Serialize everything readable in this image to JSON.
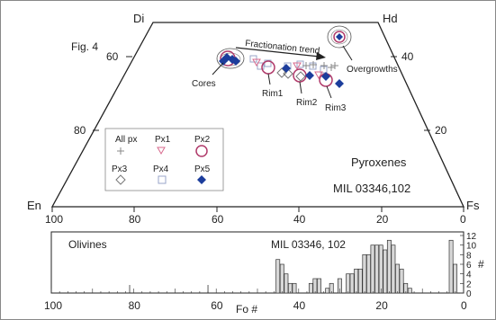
{
  "chart_data": [
    {
      "type": "scatter",
      "diagram": "pyroxene quadrilateral",
      "figure_label": "Fig. 4",
      "corners": [
        "Di",
        "Hd",
        "En",
        "Fs"
      ],
      "title": "Pyroxenes",
      "sample": "MIL 03346,102",
      "bottom_ticks": [
        100,
        80,
        60,
        40,
        20,
        0
      ],
      "left_ticks": [
        60,
        80
      ],
      "right_ticks": [
        40,
        20
      ],
      "trend_label": "Fractionation trend",
      "annotations": [
        "Cores",
        "Rim1",
        "Rim2",
        "Rim3",
        "Overgrowths"
      ],
      "legend": [
        {
          "label": "All px",
          "marker": "plus",
          "color": "#888888"
        },
        {
          "label": "Px1",
          "marker": "triangle-down",
          "color": "#d86a8e"
        },
        {
          "label": "Px2",
          "marker": "circle",
          "color": "#b03a6a"
        },
        {
          "label": "Px3",
          "marker": "diamond",
          "color": "#777777"
        },
        {
          "label": "Px4",
          "marker": "square",
          "color": "#9aa6c8"
        },
        {
          "label": "Px5",
          "marker": "filled-diamond",
          "color": "#1c3d9c"
        }
      ],
      "points": {
        "cores_px5": [
          [
            57,
            38
          ],
          [
            56,
            37
          ],
          [
            55,
            38
          ],
          [
            54,
            37
          ]
        ],
        "cores_px2": [
          [
            56,
            38
          ]
        ],
        "px4": [
          [
            49,
            38
          ],
          [
            47,
            35
          ],
          [
            45,
            36
          ],
          [
            41,
            35
          ],
          [
            38,
            36
          ],
          [
            35,
            35
          ],
          [
            33,
            34
          ]
        ],
        "px1": [
          [
            47,
            36
          ],
          [
            40,
            36
          ],
          [
            35,
            33
          ]
        ],
        "all_px": [
          [
            38,
            37
          ],
          [
            35,
            37
          ],
          [
            33,
            37
          ],
          [
            31,
            36
          ],
          [
            30,
            37
          ]
        ],
        "px3": [
          [
            44,
            34
          ],
          [
            42,
            34
          ],
          [
            38,
            33
          ]
        ],
        "rim1_px2": [
          [
            44,
            35
          ]
        ],
        "rim2_px2": [
          [
            37,
            33
          ]
        ],
        "rim3_px2": [
          [
            31,
            31
          ]
        ],
        "px5_mid": [
          [
            41,
            35
          ],
          [
            40,
            34
          ],
          [
            35,
            31
          ],
          [
            30,
            30
          ]
        ],
        "overgrowth_px5": [
          [
            26,
            43
          ]
        ],
        "overgrowth_px2": [
          [
            26,
            43
          ]
        ]
      }
    },
    {
      "type": "bar",
      "title": "Olivines",
      "sample": "MIL 03346, 102",
      "xlabel": "Fo #",
      "ylabel": "#",
      "x_ticks": [
        100,
        80,
        60,
        40,
        20,
        0
      ],
      "y_ticks": [
        0,
        2,
        4,
        6,
        8,
        10,
        12
      ],
      "xlim": [
        100,
        0
      ],
      "ylim": [
        0,
        12
      ],
      "bins": [
        45,
        44,
        43,
        42,
        41,
        39,
        37,
        36,
        35,
        33,
        32,
        30,
        29,
        28,
        27,
        26,
        25,
        24,
        23,
        22,
        21,
        20,
        19,
        18,
        17,
        16,
        15,
        14,
        13,
        12,
        11,
        10,
        9,
        8,
        7,
        6,
        5,
        4,
        3,
        2
      ],
      "values": [
        7,
        6,
        4,
        2,
        2,
        0,
        2,
        3,
        3,
        1,
        2,
        3,
        0,
        4,
        4,
        5,
        5,
        8,
        8,
        10,
        10,
        10,
        9,
        11,
        10,
        6,
        5,
        2,
        1,
        0,
        0,
        0,
        0,
        0,
        0,
        0,
        0,
        0,
        11,
        6
      ],
      "minor_ticks": [
        81,
        62
      ]
    }
  ]
}
